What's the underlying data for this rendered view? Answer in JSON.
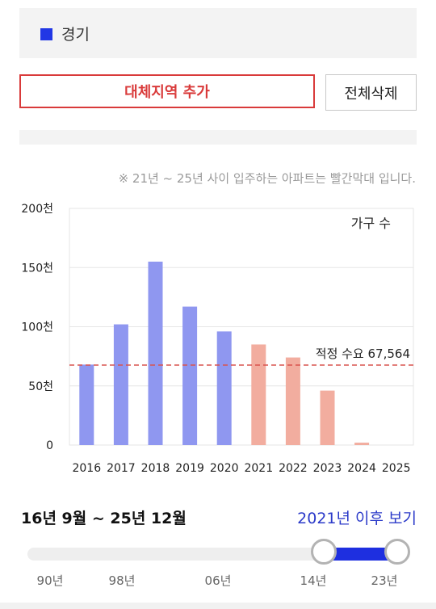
{
  "region": {
    "name": "경기",
    "swatch_color": "#2137e5"
  },
  "buttons": {
    "add_region": "대체지역 추가",
    "clear_all": "전체삭제"
  },
  "note": "※ 21년 ~ 25년 사이 입주하는 아파트는 빨간막대 입니다.",
  "chart_data": {
    "type": "bar",
    "title": "가구 수",
    "categories": [
      "2016",
      "2017",
      "2018",
      "2019",
      "2020",
      "2021",
      "2022",
      "2023",
      "2024",
      "2025"
    ],
    "values": [
      68000,
      102000,
      155000,
      117000,
      96000,
      85000,
      74000,
      46000,
      2000,
      0
    ],
    "bar_colors": [
      "#8f97f0",
      "#8f97f0",
      "#8f97f0",
      "#8f97f0",
      "#8f97f0",
      "#f2ad9f",
      "#f2ad9f",
      "#f2ad9f",
      "#f2ad9f",
      "#f2ad9f"
    ],
    "ylim": [
      0,
      200000
    ],
    "yticks": [
      0,
      50000,
      100000,
      150000,
      200000
    ],
    "ytick_labels": [
      "0",
      "50천",
      "100천",
      "150천",
      "200천"
    ],
    "grid": true,
    "reference_line": {
      "value": 67564,
      "label": "적정 수요 67,564",
      "color": "#d9534f"
    }
  },
  "period": {
    "label": "16년 9월 ~ 25년 12월",
    "after_link": "2021년 이후 보기"
  },
  "slider": {
    "tick_labels": [
      "90년",
      "98년",
      "06년",
      "14년",
      "23년"
    ],
    "range_color": "#1e2fe0"
  }
}
